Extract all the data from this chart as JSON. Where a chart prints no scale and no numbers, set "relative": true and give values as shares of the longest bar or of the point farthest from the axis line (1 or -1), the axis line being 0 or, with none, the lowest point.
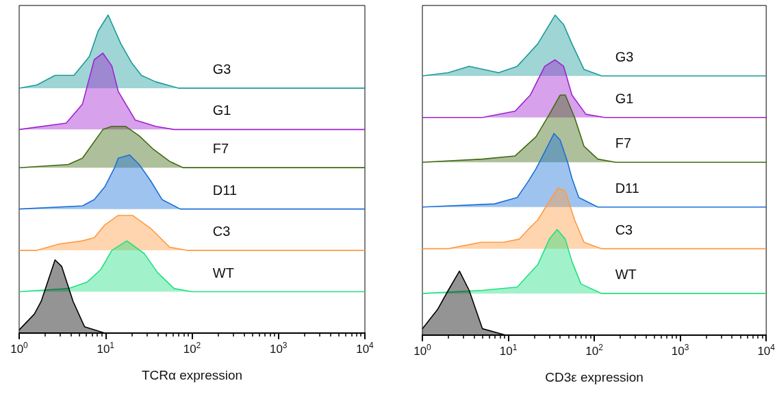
{
  "chart_data": [
    {
      "type": "area",
      "xlabel": "TCRα expression",
      "relative": true,
      "log": "x",
      "xlim": [
        1,
        10000
      ],
      "xticks": [
        {
          "value": 1,
          "label": "10$^{0}$"
        },
        {
          "value": 10,
          "label": "10$^{1}$"
        },
        {
          "value": 100,
          "label": "10$^{2}$"
        },
        {
          "value": 1000,
          "label": "10$^{3}$"
        },
        {
          "value": 10000,
          "label": "10$^{4}$"
        }
      ],
      "tick_labels": "x",
      "series": [
        {
          "name": "G3",
          "color": "#1a9a9a",
          "x": [
            1,
            1.6,
            2.6,
            4.3,
            6.5,
            8.2,
            10.7,
            15,
            20,
            26,
            38,
            70,
            10000
          ],
          "values": [
            0.77,
            0.78,
            0.81,
            0.81,
            0.87,
            0.95,
            1.0,
            0.91,
            0.85,
            0.81,
            0.79,
            0.77,
            0.77
          ]
        },
        {
          "name": "G1",
          "color": "#a020d0",
          "x": [
            1,
            3.5,
            5.4,
            7.4,
            9.3,
            11.8,
            14,
            22,
            38,
            62,
            10000
          ],
          "values": [
            0.64,
            0.66,
            0.72,
            0.86,
            0.88,
            0.84,
            0.76,
            0.67,
            0.65,
            0.64,
            0.64
          ]
        },
        {
          "name": "F7",
          "color": "#3f6a10",
          "x": [
            1,
            3.7,
            5.4,
            9.3,
            11.8,
            17,
            24.5,
            35,
            55,
            79,
            10000
          ],
          "values": [
            0.52,
            0.53,
            0.55,
            0.64,
            0.65,
            0.65,
            0.62,
            0.58,
            0.54,
            0.52,
            0.52
          ]
        },
        {
          "name": "D11",
          "color": "#1a6fd8",
          "x": [
            1,
            5.4,
            7.4,
            9.8,
            12.7,
            14,
            19,
            24.5,
            33,
            45,
            73,
            10000
          ],
          "values": [
            0.39,
            0.4,
            0.42,
            0.46,
            0.52,
            0.55,
            0.56,
            0.53,
            0.48,
            0.42,
            0.39,
            0.39
          ]
        },
        {
          "name": "C3",
          "color": "#ff9a40",
          "x": [
            1,
            1.6,
            2.9,
            5.4,
            7.4,
            9.8,
            14,
            20.5,
            33,
            55,
            88,
            10000
          ],
          "values": [
            0.26,
            0.26,
            0.28,
            0.29,
            0.3,
            0.34,
            0.37,
            0.37,
            0.33,
            0.27,
            0.26,
            0.26
          ]
        },
        {
          "name": "WT",
          "color": "#20e080",
          "x": [
            1,
            3.7,
            6.1,
            8.8,
            11.8,
            17.6,
            28,
            40,
            62,
            100,
            10000
          ],
          "values": [
            0.13,
            0.14,
            0.16,
            0.2,
            0.26,
            0.29,
            0.25,
            0.19,
            0.14,
            0.13,
            0.13
          ]
        },
        {
          "color": "#000000",
          "x": [
            1,
            1.5,
            1.8,
            2.6,
            3.1,
            4.2,
            5.7,
            9.8,
            14,
            10000
          ],
          "values": [
            0.01,
            0.06,
            0.1,
            0.23,
            0.21,
            0.1,
            0.02,
            0,
            0,
            0
          ]
        }
      ]
    },
    {
      "type": "area",
      "xlabel": "CD3ε expression",
      "relative": true,
      "log": "x",
      "xlim": [
        1,
        10000
      ],
      "xticks": [
        {
          "value": 1,
          "label": "10$^{0}$"
        },
        {
          "value": 10,
          "label": "10$^{1}$"
        },
        {
          "value": 100,
          "label": "10$^{2}$"
        },
        {
          "value": 1000,
          "label": "10$^{3}$"
        },
        {
          "value": 10000,
          "label": "10$^{4}$"
        }
      ],
      "tick_labels": "x",
      "series": [
        {
          "name": "G3",
          "color": "#1a9a9a",
          "x": [
            1,
            2,
            3.5,
            7.7,
            12.7,
            22,
            35,
            44,
            55,
            76,
            122,
            10000
          ],
          "values": [
            0.81,
            0.82,
            0.84,
            0.82,
            0.84,
            0.91,
            1.0,
            0.97,
            0.91,
            0.83,
            0.81,
            0.81
          ]
        },
        {
          "name": "G1",
          "color": "#a020d0",
          "x": [
            1,
            5,
            12,
            18,
            26.5,
            35,
            44,
            55,
            80,
            132,
            10000
          ],
          "values": [
            0.68,
            0.68,
            0.7,
            0.75,
            0.84,
            0.86,
            0.84,
            0.75,
            0.69,
            0.68,
            0.68
          ]
        },
        {
          "name": "F7",
          "color": "#3f6a10",
          "x": [
            1,
            5,
            12,
            21,
            30,
            40,
            46,
            59,
            76,
            110,
            177,
            10000
          ],
          "values": [
            0.54,
            0.55,
            0.56,
            0.62,
            0.69,
            0.75,
            0.75,
            0.68,
            0.59,
            0.55,
            0.54,
            0.54
          ]
        },
        {
          "name": "D11",
          "color": "#1a6fd8",
          "x": [
            1,
            6.9,
            12.7,
            17,
            21,
            24,
            34,
            40,
            49,
            55,
            66,
            110,
            10000
          ],
          "values": [
            0.4,
            0.41,
            0.43,
            0.48,
            0.52,
            0.55,
            0.63,
            0.61,
            0.54,
            0.49,
            0.43,
            0.4,
            0.4
          ]
        },
        {
          "name": "C3",
          "color": "#ff9a40",
          "x": [
            1,
            2,
            4.8,
            8.8,
            13.4,
            17,
            22,
            32,
            38,
            46,
            59,
            76,
            122,
            10000
          ],
          "values": [
            0.27,
            0.27,
            0.29,
            0.29,
            0.3,
            0.33,
            0.36,
            0.43,
            0.46,
            0.45,
            0.36,
            0.29,
            0.27,
            0.27
          ]
        },
        {
          "name": "WT",
          "color": "#20e080",
          "x": [
            1,
            5,
            12.7,
            16,
            22,
            30,
            37,
            46,
            55,
            70,
            122,
            10000
          ],
          "values": [
            0.13,
            0.14,
            0.15,
            0.18,
            0.22,
            0.3,
            0.33,
            0.3,
            0.23,
            0.16,
            0.13,
            0.13
          ]
        },
        {
          "color": "#000000",
          "x": [
            1,
            1.5,
            2,
            2.7,
            3.5,
            5,
            9.3,
            10000
          ],
          "values": [
            0.02,
            0.08,
            0.14,
            0.2,
            0.14,
            0.02,
            0,
            0
          ]
        }
      ]
    }
  ]
}
